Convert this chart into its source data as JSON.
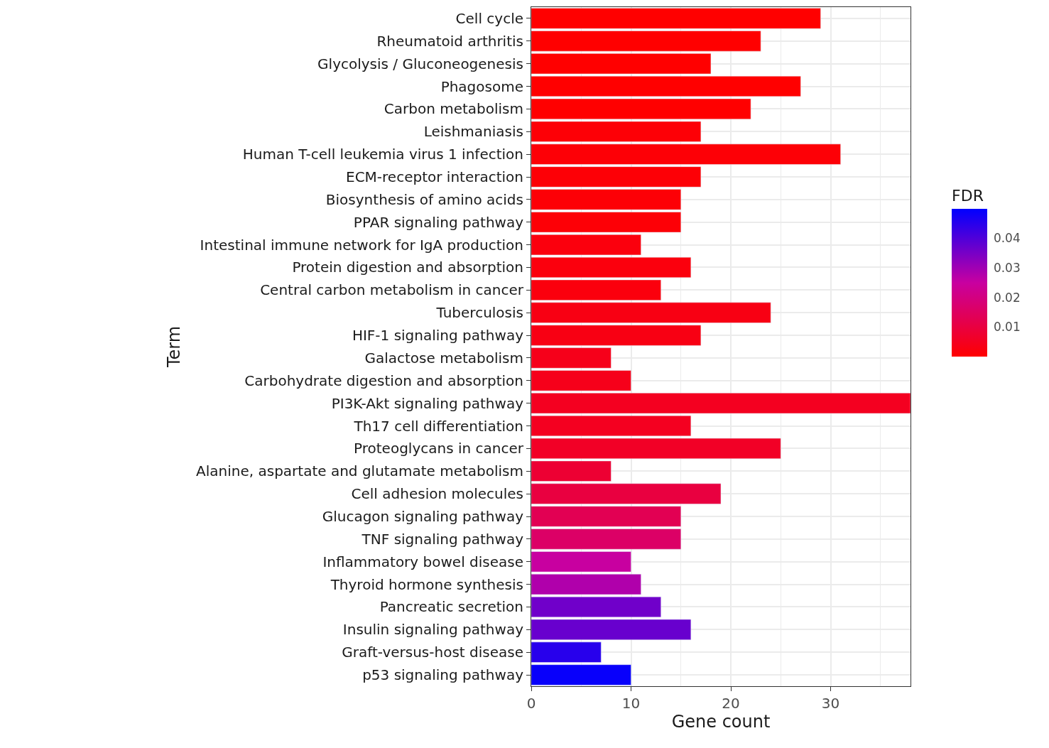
{
  "chart_data": {
    "type": "bar",
    "orientation": "horizontal",
    "xlabel": "Gene count",
    "ylabel": "Term",
    "clabel": "FDR",
    "categories": [
      "Cell cycle",
      "Rheumatoid arthritis",
      "Glycolysis / Gluconeogenesis",
      "Phagosome",
      "Carbon metabolism",
      "Leishmaniasis",
      "Human T-cell leukemia virus 1 infection",
      "ECM-receptor interaction",
      "Biosynthesis of amino acids",
      "PPAR signaling pathway",
      "Intestinal immune network for IgA production",
      "Protein digestion and absorption",
      "Central carbon metabolism in cancer",
      "Tuberculosis",
      "HIF-1 signaling pathway",
      "Galactose metabolism",
      "Carbohydrate digestion and absorption",
      "PI3K-Akt signaling pathway",
      "Th17 cell differentiation",
      "Proteoglycans in cancer",
      "Alanine, aspartate and glutamate metabolism",
      "Cell adhesion molecules",
      "Glucagon signaling pathway",
      "TNF signaling pathway",
      "Inflammatory bowel disease",
      "Thyroid hormone synthesis",
      "Pancreatic secretion",
      "Insulin signaling pathway",
      "Graft-versus-host disease",
      "p53 signaling pathway"
    ],
    "values": [
      29,
      23,
      18,
      27,
      22,
      17,
      31,
      17,
      15,
      15,
      11,
      16,
      13,
      24,
      17,
      8,
      10,
      38,
      16,
      25,
      8,
      19,
      15,
      15,
      10,
      11,
      13,
      16,
      7,
      10
    ],
    "cvalues": [
      0.0,
      0.0,
      0.0,
      0.0,
      0.0,
      0.001,
      0.001,
      0.001,
      0.001,
      0.001,
      0.002,
      0.002,
      0.002,
      0.003,
      0.003,
      0.004,
      0.004,
      0.005,
      0.005,
      0.006,
      0.008,
      0.01,
      0.013,
      0.016,
      0.025,
      0.028,
      0.036,
      0.037,
      0.045,
      0.049
    ],
    "clim": [
      0,
      0.05
    ],
    "cticks": [
      0.01,
      0.02,
      0.03,
      0.04
    ],
    "xlim": [
      0,
      38
    ],
    "xticks": [
      0,
      10,
      20,
      30
    ],
    "grid": true,
    "legend": false
  }
}
